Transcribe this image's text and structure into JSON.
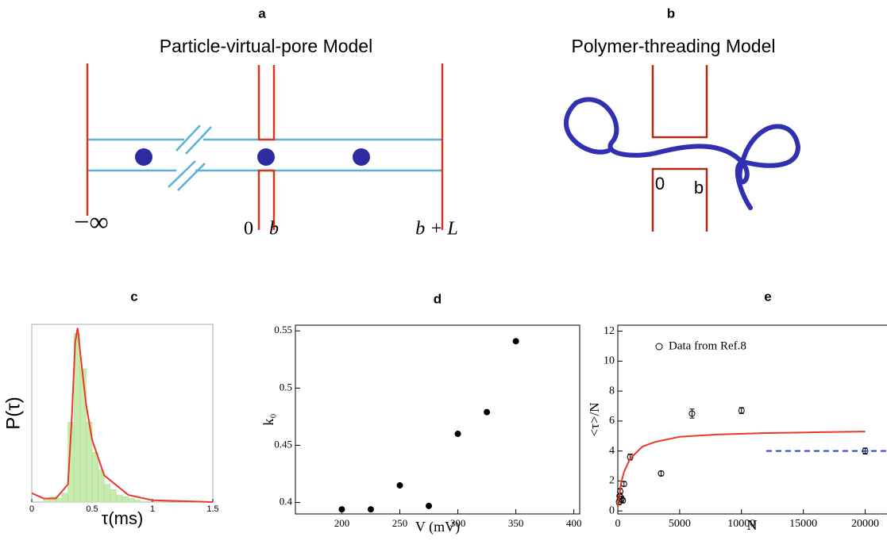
{
  "diagrams": {
    "a": {
      "label": "a",
      "title": "Particle-virtual-pore Model",
      "minus_infinity": "−∞",
      "zero": "0",
      "b": "b",
      "b_plus_L": "b + L"
    },
    "b": {
      "label": "b",
      "title": "Polymer-threading Model",
      "zero": "0",
      "b": "b"
    }
  },
  "chart_data": [
    {
      "type": "histogram",
      "title": "c",
      "xlabel": "τ(ms)",
      "ylabel": "P(τ)",
      "bins": [
        0.1,
        0.15,
        0.2,
        0.25,
        0.3,
        0.35,
        0.4,
        0.45,
        0.5,
        0.55,
        0.6,
        0.65,
        0.7,
        0.75,
        0.8,
        0.85,
        0.9
      ],
      "counts": [
        2,
        3,
        2,
        5,
        45,
        95,
        75,
        45,
        28,
        18,
        10,
        7,
        4,
        3,
        2,
        1
      ],
      "color": "#c8ebb0",
      "series": [
        {
          "style": "solid",
          "color": "#e8392a",
          "x": [
            0,
            0.1,
            0.2,
            0.3,
            0.33,
            0.36,
            0.38,
            0.4,
            0.45,
            0.5,
            0.6,
            0.8,
            1.0,
            1.5
          ],
          "values": [
            5,
            2,
            2,
            10,
            45,
            90,
            98,
            85,
            55,
            35,
            15,
            4,
            1,
            0
          ]
        }
      ],
      "xlim": [
        0,
        1.5
      ],
      "ylim": [
        0,
        100
      ],
      "xticks": [
        0,
        0.5,
        1,
        1.5
      ]
    },
    {
      "type": "scatter",
      "title": "d",
      "xlabel": "V (mV)",
      "ylabel": "k₀",
      "series": [
        {
          "style": "filled",
          "color": "#000000",
          "x": [
            200,
            225,
            250,
            275,
            300,
            325,
            350
          ],
          "values": [
            0.394,
            0.394,
            0.415,
            0.397,
            0.46,
            0.479,
            0.541
          ]
        }
      ],
      "xlim": [
        160,
        405
      ],
      "ylim": [
        0.39,
        0.555
      ],
      "xticks": [
        200,
        250,
        300,
        350,
        400
      ],
      "yticks": [
        0.4,
        0.45,
        0.5,
        0.55
      ]
    },
    {
      "type": "scatter",
      "title": "e",
      "xlabel": "N",
      "ylabel": "<τ>/N",
      "series": [
        {
          "name": "Data from Ref.8",
          "style": "open",
          "color": "#000000",
          "x": [
            100,
            150,
            200,
            300,
            400,
            500,
            1000,
            3500,
            6000,
            10000,
            20000
          ],
          "values": [
            0.6,
            1.0,
            1.3,
            0.8,
            0.7,
            1.8,
            3.6,
            2.5,
            6.5,
            6.7,
            4.0
          ],
          "errors": [
            0.2,
            0.2,
            0.2,
            0.2,
            0.15,
            0.15,
            0.2,
            0.15,
            0.3,
            0.2,
            0.2
          ]
        },
        {
          "style": "solid",
          "color": "#e8392a",
          "x": [
            0,
            250,
            500,
            1000,
            2000,
            3000,
            5000,
            8000,
            12000,
            16000,
            20000
          ],
          "values": [
            0.3,
            1.8,
            2.6,
            3.5,
            4.3,
            4.6,
            4.95,
            5.1,
            5.2,
            5.25,
            5.3
          ]
        },
        {
          "style": "dashed",
          "color": "#2c3cd0",
          "x": [
            12000,
            21700
          ],
          "values": [
            4.0,
            4.0
          ]
        }
      ],
      "xlim": [
        0,
        21700
      ],
      "ylim": [
        -0.2,
        12.4
      ],
      "xticks": [
        0,
        5000,
        10000,
        15000,
        20000
      ],
      "yticks": [
        0,
        2,
        4,
        6,
        8,
        10,
        12
      ]
    }
  ]
}
